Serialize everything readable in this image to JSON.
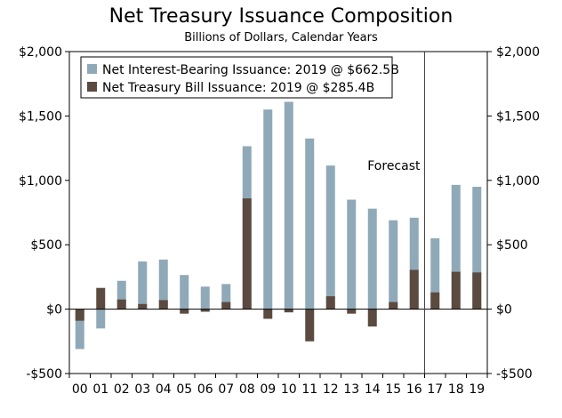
{
  "chart_data": {
    "type": "bar",
    "title": "Net Treasury Issuance Composition",
    "subtitle": "Billions of Dollars, Calendar Years",
    "categories": [
      "00",
      "01",
      "02",
      "03",
      "04",
      "05",
      "06",
      "07",
      "08",
      "09",
      "10",
      "11",
      "12",
      "13",
      "14",
      "15",
      "16",
      "17",
      "18",
      "19"
    ],
    "series": [
      {
        "name": "Net Interest-Bearing Issuance: 2019 @ $662.5B",
        "color": "#8fa9b8",
        "values": [
          -310,
          -150,
          220,
          370,
          385,
          265,
          175,
          195,
          1265,
          1550,
          1610,
          1325,
          1115,
          850,
          780,
          690,
          710,
          550,
          965,
          950
        ]
      },
      {
        "name": "Net Treasury Bill Issuance: 2019 @ $285.4B",
        "color": "#5b4a3f",
        "values": [
          -90,
          165,
          75,
          40,
          70,
          -35,
          -20,
          55,
          860,
          -75,
          -25,
          -250,
          100,
          -35,
          -135,
          55,
          305,
          130,
          290,
          285
        ]
      }
    ],
    "y_tick_labels": [
      "$2,000",
      "$1,500",
      "$1,000",
      "$500",
      "$0",
      "-$500"
    ],
    "y_ticks": [
      2000,
      1500,
      1000,
      500,
      0,
      -500
    ],
    "ylim": [
      -500,
      2000
    ],
    "forecast_label": "Forecast",
    "forecast_starts_at": "17",
    "legend_position": "top-left",
    "grid": false,
    "secondary_y_axis": true
  }
}
